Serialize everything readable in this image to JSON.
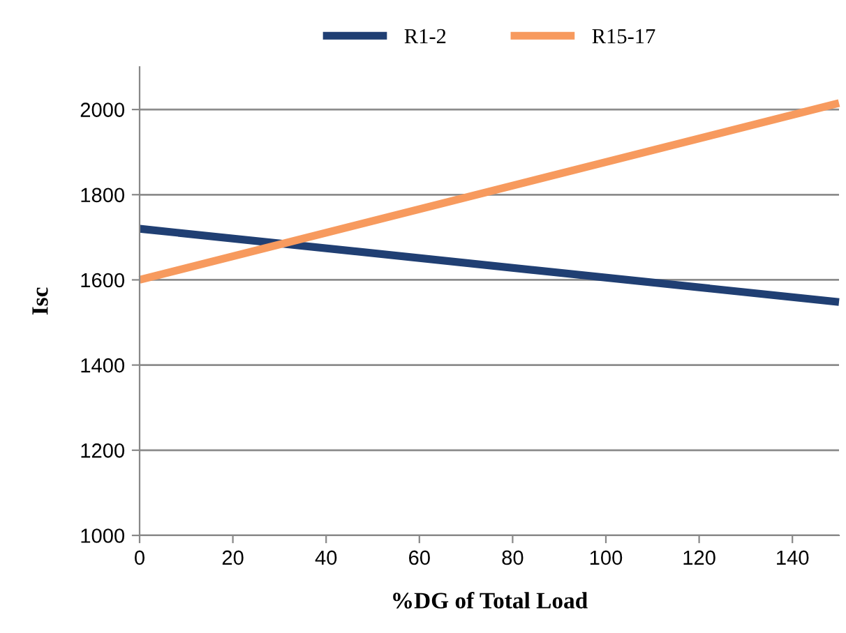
{
  "chart_data": {
    "type": "line",
    "xlabel": "%DG of Total Load",
    "ylabel": "Isc",
    "x": [
      0,
      150
    ],
    "series": [
      {
        "name": "R1-2",
        "color": "#203f73",
        "values": [
          1720,
          1548
        ]
      },
      {
        "name": "R15-17",
        "color": "#f79a5e",
        "values": [
          1600,
          2015
        ]
      }
    ],
    "xlim": [
      0,
      150
    ],
    "xticks": [
      0,
      20,
      40,
      60,
      80,
      100,
      120,
      140
    ],
    "ylim": [
      1000,
      2100
    ],
    "yticks": [
      1000,
      1200,
      1400,
      1600,
      1800,
      2000
    ],
    "grid": "y",
    "legend": "top",
    "marker": "none",
    "line_style": "solid"
  }
}
